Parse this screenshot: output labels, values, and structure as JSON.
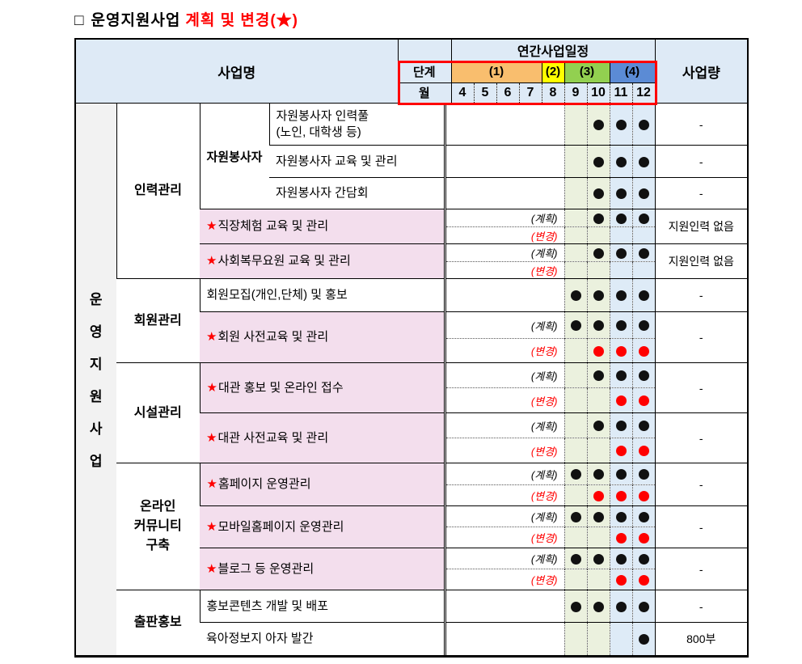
{
  "title": {
    "box": "□",
    "main": "운영지원사업",
    "highlight": "계획 및 변경(★)"
  },
  "colors": {
    "header_bg": "#DEEAF6",
    "left_col_bg": "#F2F2F2",
    "pink_row": "#F3DEED",
    "green_col": "#EBF1DE",
    "blue_col": "#DEEBF7",
    "highlight_red": "#FF0000",
    "dot_black": "#111111",
    "dot_red": "#FF0000"
  },
  "header": {
    "business_name": "사업명",
    "annual_schedule": "연간사업일정",
    "stage": "단계",
    "month": "월",
    "volume": "사업량",
    "stages": [
      {
        "label": "(1)",
        "months": [
          "4",
          "5",
          "6",
          "7"
        ],
        "color": "#F9BE6E"
      },
      {
        "label": "(2)",
        "months": [
          "8"
        ],
        "color": "#FFFF00"
      },
      {
        "label": "(3)",
        "months": [
          "9",
          "10"
        ],
        "color": "#92D050"
      },
      {
        "label": "(4)",
        "months": [
          "11",
          "12"
        ],
        "color": "#5B8BD5"
      }
    ],
    "months": [
      "4",
      "5",
      "6",
      "7",
      "8",
      "9",
      "10",
      "11",
      "12"
    ]
  },
  "left_label": "운영지원사업",
  "row_labels": {
    "plan": "(계획)",
    "change": "(변경)",
    "star": "★"
  },
  "categories": [
    {
      "label": "인력관리",
      "items": [
        0,
        1,
        2,
        3,
        4
      ]
    },
    {
      "label": "회원관리",
      "items": [
        5,
        6
      ]
    },
    {
      "label": "시설관리",
      "items": [
        7,
        8
      ]
    },
    {
      "label": "온라인 커뮤니티 구축",
      "label_lines": [
        "온라인",
        "커뮤니티",
        "구축"
      ],
      "items": [
        9,
        10,
        11
      ]
    },
    {
      "label": "출판홍보",
      "items": [
        12,
        13
      ]
    }
  ],
  "items": [
    {
      "name_lines": [
        "자원봉사자 인력풀",
        "(노인, 대학생 등)"
      ],
      "subcategory": "자원봉사자",
      "starred": false,
      "split": false,
      "dots": [
        10,
        11,
        12
      ],
      "amount": "-"
    },
    {
      "name_lines": [
        "자원봉사자 교육 및 관리"
      ],
      "subcategory": "자원봉사자",
      "starred": false,
      "split": false,
      "dots": [
        10,
        11,
        12
      ],
      "amount": "-"
    },
    {
      "name_lines": [
        "자원봉사자 간담회"
      ],
      "subcategory": "자원봉사자",
      "starred": false,
      "split": false,
      "dots": [
        10,
        11,
        12
      ],
      "amount": "-"
    },
    {
      "name_lines": [
        "직장체험 교육 및 관리"
      ],
      "starred": true,
      "split": true,
      "plan_dots": [
        10,
        11,
        12
      ],
      "change_dots": [],
      "amount": "지원인력 없음"
    },
    {
      "name_lines": [
        "사회복무요원 교육 및 관리"
      ],
      "starred": true,
      "split": true,
      "plan_dots": [
        10,
        11,
        12
      ],
      "change_dots": [],
      "amount": "지원인력 없음"
    },
    {
      "name_lines": [
        "회원모집(개인,단체) 및 홍보"
      ],
      "starred": false,
      "split": false,
      "dots": [
        9,
        10,
        11,
        12
      ],
      "amount": "-"
    },
    {
      "name_lines": [
        "회원 사전교육 및 관리"
      ],
      "starred": true,
      "split": true,
      "plan_dots": [
        9,
        10,
        11,
        12
      ],
      "change_dots": [
        10,
        11,
        12
      ],
      "amount": "-"
    },
    {
      "name_lines": [
        "대관 홍보 및 온라인 접수"
      ],
      "starred": true,
      "split": true,
      "plan_dots": [
        10,
        11,
        12
      ],
      "change_dots": [
        11,
        12
      ],
      "amount": "-"
    },
    {
      "name_lines": [
        "대관 사전교육 및 관리"
      ],
      "starred": true,
      "split": true,
      "plan_dots": [
        10,
        11,
        12
      ],
      "change_dots": [
        11,
        12
      ],
      "amount": "-"
    },
    {
      "name_lines": [
        "홈페이지 운영관리"
      ],
      "starred": true,
      "split": true,
      "plan_dots": [
        9,
        10,
        11,
        12
      ],
      "change_dots": [
        10,
        11,
        12
      ],
      "amount": "-"
    },
    {
      "name_lines": [
        "모바일홈페이지 운영관리"
      ],
      "starred": true,
      "split": true,
      "plan_dots": [
        9,
        10,
        11,
        12
      ],
      "change_dots": [
        11,
        12
      ],
      "amount": "-"
    },
    {
      "name_lines": [
        "블로그 등 운영관리"
      ],
      "starred": true,
      "split": true,
      "plan_dots": [
        9,
        10,
        11,
        12
      ],
      "change_dots": [
        11,
        12
      ],
      "amount": "-"
    },
    {
      "name_lines": [
        "홍보콘텐츠 개발 및 배포"
      ],
      "starred": false,
      "split": false,
      "dots": [
        9,
        10,
        11,
        12
      ],
      "amount": "-"
    },
    {
      "name_lines": [
        "육아정보지 아자 발간"
      ],
      "starred": false,
      "split": false,
      "dots": [
        12
      ],
      "amount": "800부"
    }
  ]
}
